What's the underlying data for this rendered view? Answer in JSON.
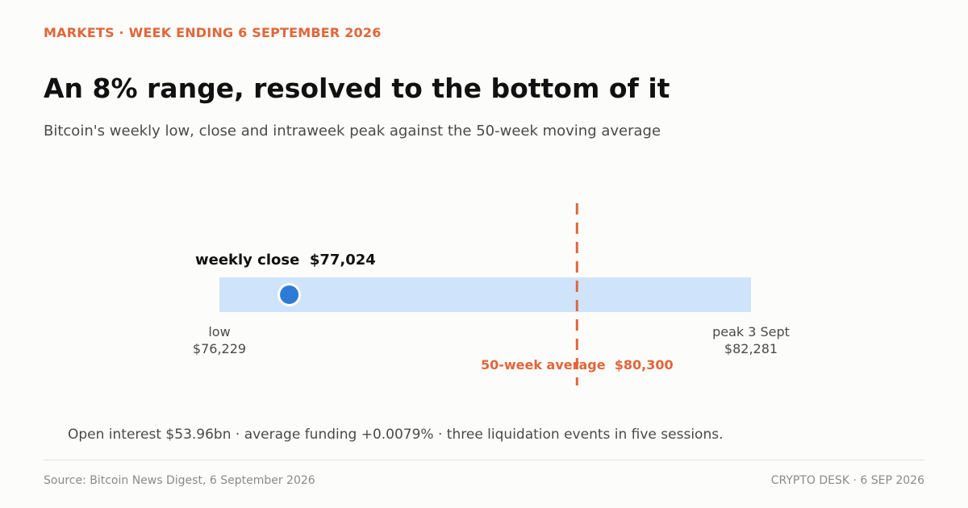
{
  "header": {
    "kicker": "MARKETS · WEEK ENDING 6 SEPTEMBER 2026",
    "title": "An 8% range, resolved to the bottom of it",
    "subtitle": "Bitcoin's weekly low, close and intraweek peak against the 50-week moving average"
  },
  "chart_data": {
    "type": "range",
    "low": {
      "value": 76229,
      "label": "low",
      "value_label": "$76,229"
    },
    "peak": {
      "value": 82281,
      "label": "peak 3 Sept",
      "value_label": "$82,281"
    },
    "close": {
      "value": 77024,
      "label": "weekly close  $77,024"
    },
    "average": {
      "value": 80300,
      "label": "50-week average  $80,300"
    }
  },
  "colors": {
    "accent": "#e0663a",
    "range_band": "#cfe3fb",
    "close_marker": "#2e7bd6"
  },
  "note": "Open interest $53.96bn · average funding +0.0079% · three liquidation events in five sessions.",
  "footer": {
    "source": "Source: Bitcoin News Digest, 6 September 2026",
    "credit": "CRYPTO DESK  ·  6 SEP 2026"
  }
}
